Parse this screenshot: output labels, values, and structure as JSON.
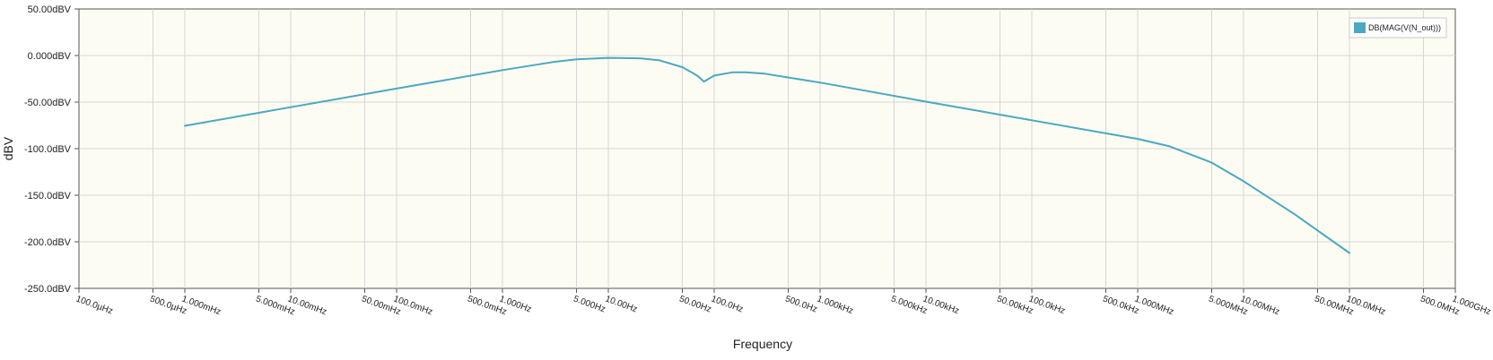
{
  "chart_data": {
    "type": "line",
    "xlabel": "Frequency",
    "ylabel": "dBV",
    "x_scale": "log",
    "xlim": [
      0.0001,
      1000000000
    ],
    "ylim": [
      -250,
      50
    ],
    "grid": true,
    "legend_position": "top-right",
    "colors": {
      "plot_bg": "#fdfcf3",
      "grid": "#d6d6d6",
      "series": "#4aa8c0",
      "axis": "#555555"
    },
    "y_ticks": [
      {
        "value": 50,
        "label": "50.00dBV"
      },
      {
        "value": 0,
        "label": "0.000dBV"
      },
      {
        "value": -50,
        "label": "-50.00dBV"
      },
      {
        "value": -100,
        "label": "-100.0dBV"
      },
      {
        "value": -150,
        "label": "-150.0dBV"
      },
      {
        "value": -200,
        "label": "-200.0dBV"
      },
      {
        "value": -250,
        "label": "-250.0dBV"
      }
    ],
    "x_ticks": [
      {
        "value": 0.0001,
        "label": "100.0µHz"
      },
      {
        "value": 0.0005,
        "label": "500.0µHz"
      },
      {
        "value": 0.001,
        "label": "1.000mHz"
      },
      {
        "value": 0.005,
        "label": "5.000mHz"
      },
      {
        "value": 0.01,
        "label": "10.00mHz"
      },
      {
        "value": 0.05,
        "label": "50.00mHz"
      },
      {
        "value": 0.1,
        "label": "100.0mHz"
      },
      {
        "value": 0.5,
        "label": "500.0mHz"
      },
      {
        "value": 1,
        "label": "1.000Hz"
      },
      {
        "value": 5,
        "label": "5.000Hz"
      },
      {
        "value": 10,
        "label": "10.00Hz"
      },
      {
        "value": 50,
        "label": "50.00Hz"
      },
      {
        "value": 100,
        "label": "100.0Hz"
      },
      {
        "value": 500,
        "label": "500.0Hz"
      },
      {
        "value": 1000,
        "label": "1.000kHz"
      },
      {
        "value": 5000,
        "label": "5.000kHz"
      },
      {
        "value": 10000,
        "label": "10.00kHz"
      },
      {
        "value": 50000,
        "label": "50.00kHz"
      },
      {
        "value": 100000,
        "label": "100.0kHz"
      },
      {
        "value": 500000,
        "label": "500.0kHz"
      },
      {
        "value": 1000000,
        "label": "1.000MHz"
      },
      {
        "value": 5000000,
        "label": "5.000MHz"
      },
      {
        "value": 10000000,
        "label": "10.00MHz"
      },
      {
        "value": 50000000,
        "label": "50.00MHz"
      },
      {
        "value": 100000000,
        "label": "100.0MHz"
      },
      {
        "value": 500000000,
        "label": "500.0MHz"
      },
      {
        "value": 1000000000,
        "label": "1.000GHz"
      }
    ],
    "series": [
      {
        "name": "DB(MAG(V(N_out)))",
        "x": [
          0.001,
          0.01,
          0.1,
          1,
          3,
          5,
          10,
          20,
          30,
          50,
          60,
          70,
          80,
          100,
          150,
          200,
          300,
          1000,
          10000,
          100000,
          1000000,
          2000000,
          5000000,
          10000000,
          30000000,
          100000000
        ],
        "y": [
          -75.5,
          -55.5,
          -35.5,
          -15.7,
          -7.0,
          -4.0,
          -2.5,
          -3.0,
          -5.0,
          -12.5,
          -17.5,
          -22.0,
          -28.0,
          -21.5,
          -18.0,
          -18.0,
          -19.5,
          -29.0,
          -49.5,
          -69.5,
          -89.5,
          -97.5,
          -115.0,
          -135.0,
          -170.0,
          -212.0
        ]
      }
    ]
  }
}
